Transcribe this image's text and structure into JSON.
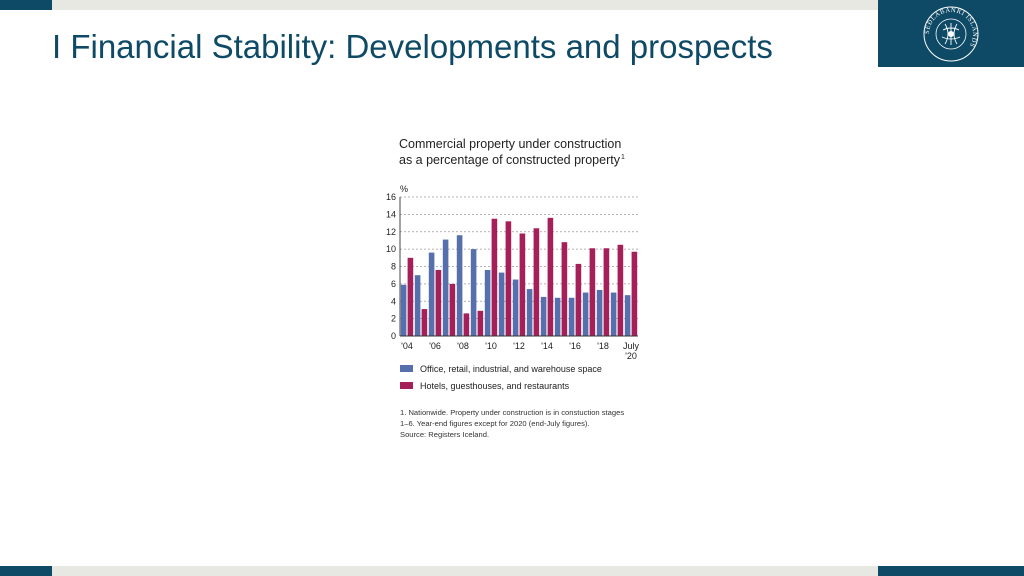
{
  "slide": {
    "title": "I Financial Stability: Developments and prospects"
  },
  "logo": {
    "text": "SEÐLABANKI ÍSLANDS"
  },
  "colors": {
    "brand": "#0e4a66",
    "series_office": "#5670ad",
    "series_hotels": "#a52058"
  },
  "chart_data": {
    "type": "bar",
    "title_line1": "Commercial property under construction",
    "title_line2": "as a percentage of constructed property",
    "title_superscript": "1",
    "ylabel": "%",
    "ylim": [
      0,
      16
    ],
    "yticks": [
      0,
      2,
      4,
      6,
      8,
      10,
      12,
      14,
      16
    ],
    "grid": true,
    "categories": [
      "2004",
      "2005",
      "2006",
      "2007",
      "2008",
      "2009",
      "2010",
      "2011",
      "2012",
      "2013",
      "2014",
      "2015",
      "2016",
      "2017",
      "2018",
      "2019",
      "July 2020"
    ],
    "xtick_labels": [
      {
        "index": 0,
        "label": "'04"
      },
      {
        "index": 2,
        "label": "'06"
      },
      {
        "index": 4,
        "label": "'08"
      },
      {
        "index": 6,
        "label": "'10"
      },
      {
        "index": 8,
        "label": "'12"
      },
      {
        "index": 10,
        "label": "'14"
      },
      {
        "index": 12,
        "label": "'16"
      },
      {
        "index": 14,
        "label": "'18"
      },
      {
        "index": 16,
        "label": "July",
        "label2": "'20"
      }
    ],
    "series": [
      {
        "name": "Office, retail, industrial, and warehouse space",
        "color": "#5670ad",
        "values": [
          5.9,
          7.0,
          9.6,
          11.1,
          11.6,
          10.0,
          7.6,
          7.3,
          6.5,
          5.4,
          4.5,
          4.4,
          4.4,
          5.0,
          5.3,
          5.0,
          4.7
        ]
      },
      {
        "name": "Hotels, guesthouses, and restaurants",
        "color": "#a52058",
        "values": [
          9.0,
          3.1,
          7.6,
          6.0,
          2.6,
          2.9,
          13.5,
          13.2,
          11.8,
          12.4,
          13.6,
          10.8,
          8.3,
          10.1,
          10.1,
          10.5,
          9.7
        ]
      }
    ],
    "footnote_line1": "1. Nationwide. Property under construction is in constuction stages",
    "footnote_line2": "1–6. Year-end figures except for 2020 (end-July figures).",
    "source": "Source: Registers Iceland."
  }
}
